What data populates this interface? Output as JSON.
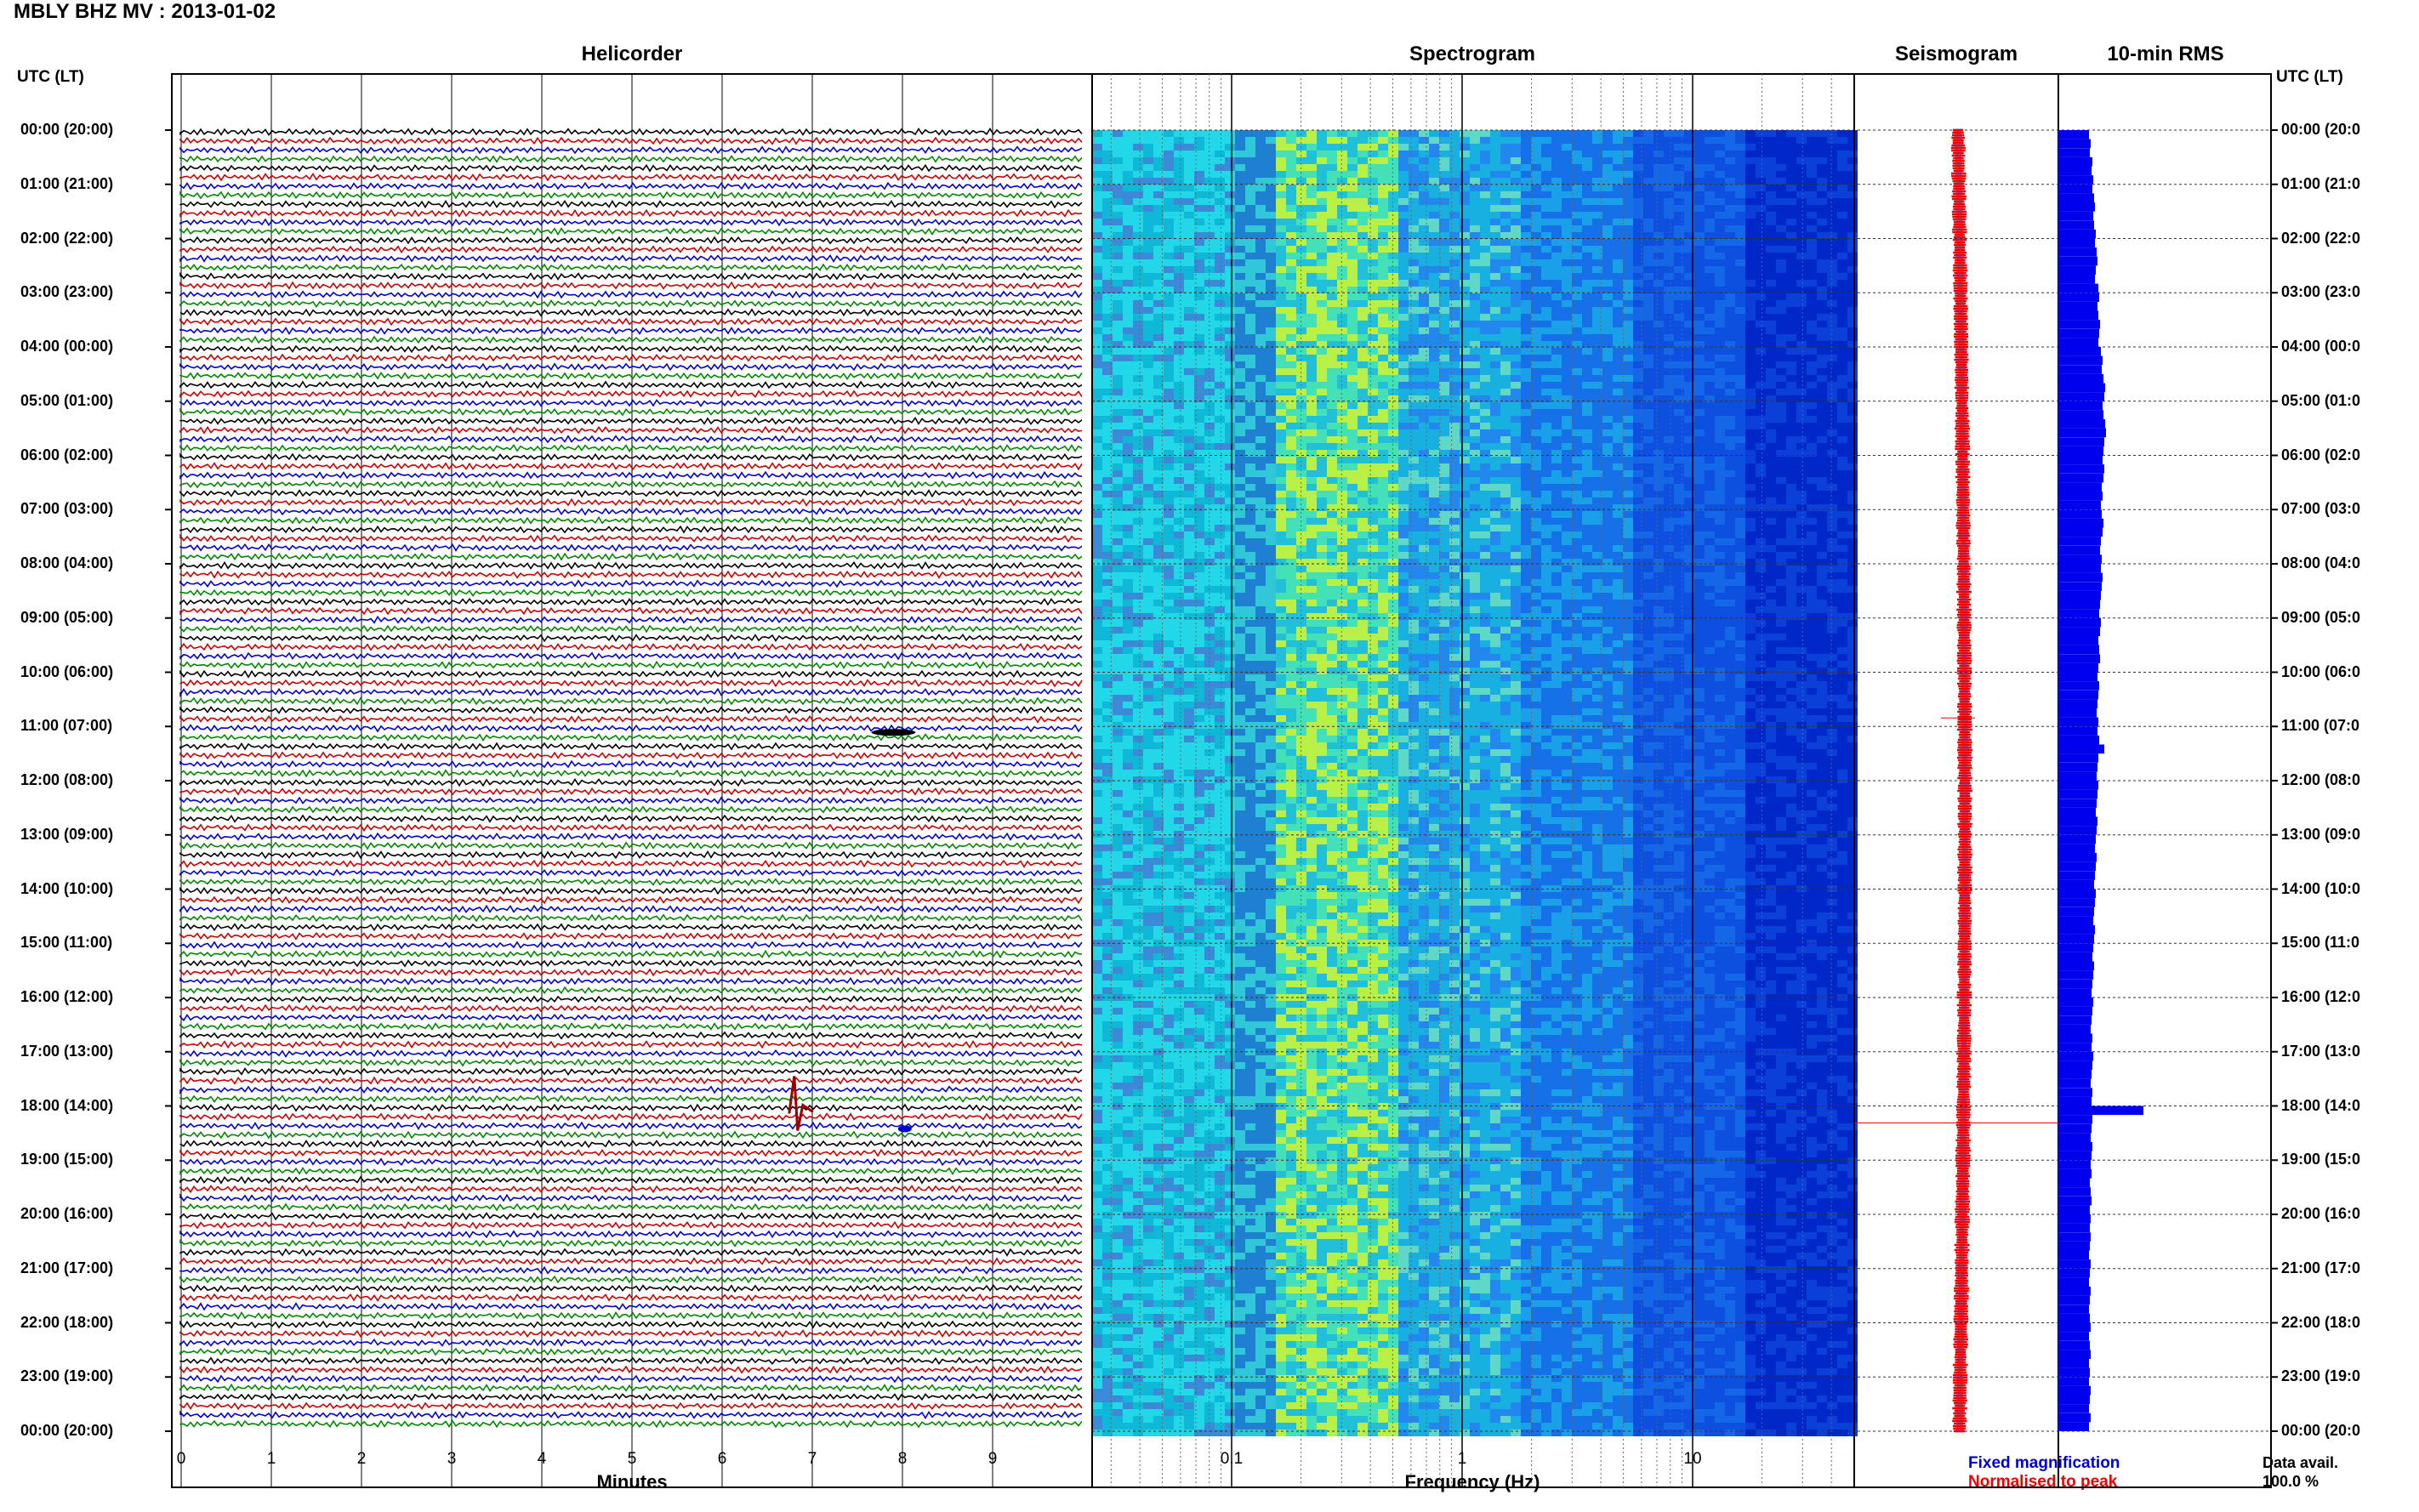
{
  "header": {
    "title": "MBLY BHZ MV : 2013-01-02"
  },
  "panels": {
    "helicorder": "Helicorder",
    "spectrogram": "Spectrogram",
    "seismogram": "Seismogram",
    "rms": "10-min RMS"
  },
  "axis": {
    "left_title": "UTC (LT)",
    "right_title": "UTC (LT)",
    "hour_labels_left": [
      "00:00 (20:00)",
      "01:00 (21:00)",
      "02:00 (22:00)",
      "03:00 (23:00)",
      "04:00 (00:00)",
      "05:00 (01:00)",
      "06:00 (02:00)",
      "07:00 (03:00)",
      "08:00 (04:00)",
      "09:00 (05:00)",
      "10:00 (06:00)",
      "11:00 (07:00)",
      "12:00 (08:00)",
      "13:00 (09:00)",
      "14:00 (10:00)",
      "15:00 (11:00)",
      "16:00 (12:00)",
      "17:00 (13:00)",
      "18:00 (14:00)",
      "19:00 (15:00)",
      "20:00 (16:00)",
      "21:00 (17:00)",
      "22:00 (18:00)",
      "23:00 (19:00)",
      "00:00 (20:00)"
    ],
    "hour_labels_right": [
      "00:00 (20:0",
      "01:00 (21:0",
      "02:00 (22:0",
      "03:00 (23:0",
      "04:00 (00:0",
      "05:00 (01:0",
      "06:00 (02:0",
      "07:00 (03:0",
      "08:00 (04:0",
      "09:00 (05:0",
      "10:00 (06:0",
      "11:00 (07:0",
      "12:00 (08:0",
      "13:00 (09:0",
      "14:00 (10:0",
      "15:00 (11:0",
      "16:00 (12:0",
      "17:00 (13:0",
      "18:00 (14:0",
      "19:00 (15:0",
      "20:00 (16:0",
      "21:00 (17:0",
      "22:00 (18:0",
      "23:00 (19:0",
      "00:00 (20:0"
    ],
    "minutes_ticks": [
      "0",
      "1",
      "2",
      "3",
      "4",
      "5",
      "6",
      "7",
      "8",
      "9"
    ],
    "minutes_label": "Minutes",
    "freq_ticks": [
      "0.1",
      "1",
      "10"
    ],
    "freq_label": "Frequency (Hz)"
  },
  "legend": {
    "fixed": "Fixed magnification",
    "normalised": "Normalised to peak",
    "fixed_color": "#0000cc",
    "normalised_color": "#ee0000"
  },
  "availability": {
    "label": "Data avail.",
    "value": "100.0 %"
  },
  "chart_data": [
    {
      "type": "line",
      "title": "Helicorder",
      "xlabel": "Minutes",
      "xlim": [
        0,
        10
      ],
      "trace_interval_minutes": 10,
      "traces_per_hour": 6,
      "hours_utc": 24,
      "trace_colors": [
        "#000000",
        "#cc0000",
        "#0000cc",
        "#008800"
      ],
      "events": [
        {
          "label": "11:00 (07:00)",
          "minute": 7.9
        },
        {
          "label": "18:00 (14:00)",
          "minute": 6.8
        }
      ]
    },
    {
      "type": "heatmap",
      "title": "Spectrogram",
      "xlabel": "Frequency (Hz)",
      "xscale": "log",
      "xlim": [
        0.025,
        50
      ],
      "colormap": [
        "#00ffff",
        "#22cccc",
        "#aaff44",
        "#2288ee",
        "#0044dd",
        "#0000aa"
      ]
    },
    {
      "type": "line",
      "title": "Seismogram",
      "series": [
        {
          "name": "Fixed magnification",
          "color": "#0000cc"
        },
        {
          "name": "Normalised to peak",
          "color": "#ee0000"
        }
      ]
    },
    {
      "type": "bar",
      "title": "10-min RMS",
      "orientation": "horizontal",
      "bin_minutes": 10,
      "relative_values": [
        0.36,
        0.38,
        0.37,
        0.4,
        0.39,
        0.41,
        0.4,
        0.42,
        0.43,
        0.41,
        0.42,
        0.44,
        0.43,
        0.45,
        0.46,
        0.44,
        0.43,
        0.47,
        0.48,
        0.46,
        0.47,
        0.49,
        0.48,
        0.47,
        0.5,
        0.52,
        0.51,
        0.53,
        0.55,
        0.54,
        0.52,
        0.53,
        0.55,
        0.56,
        0.54,
        0.53,
        0.52,
        0.54,
        0.53,
        0.51,
        0.52,
        0.5,
        0.51,
        0.53,
        0.52,
        0.5,
        0.49,
        0.51,
        0.5,
        0.52,
        0.51,
        0.5,
        0.49,
        0.48,
        0.5,
        0.49,
        0.47,
        0.48,
        0.49,
        0.47,
        0.46,
        0.48,
        0.47,
        0.46,
        0.45,
        0.47,
        0.46,
        0.48,
        0.54,
        0.47,
        0.46,
        0.45,
        0.47,
        0.46,
        0.45,
        0.44,
        0.46,
        0.45,
        0.44,
        0.43,
        0.45,
        0.44,
        0.43,
        0.42,
        0.44,
        0.43,
        0.42,
        0.41,
        0.43,
        0.42,
        0.41,
        0.4,
        0.42,
        0.41,
        0.4,
        0.39,
        0.41,
        0.4,
        0.39,
        0.38,
        0.4,
        0.39,
        0.41,
        0.4,
        0.39,
        0.38,
        0.4,
        0.39,
        1.0,
        0.4,
        0.39,
        0.38,
        0.4,
        0.39,
        0.38,
        0.39,
        0.37,
        0.38,
        0.39,
        0.37,
        0.38,
        0.37,
        0.38,
        0.37,
        0.36,
        0.38,
        0.37,
        0.36,
        0.38,
        0.37,
        0.36,
        0.37,
        0.38,
        0.36,
        0.37,
        0.38,
        0.36,
        0.37,
        0.36,
        0.38,
        0.37,
        0.36,
        0.38,
        0.36
      ]
    }
  ]
}
